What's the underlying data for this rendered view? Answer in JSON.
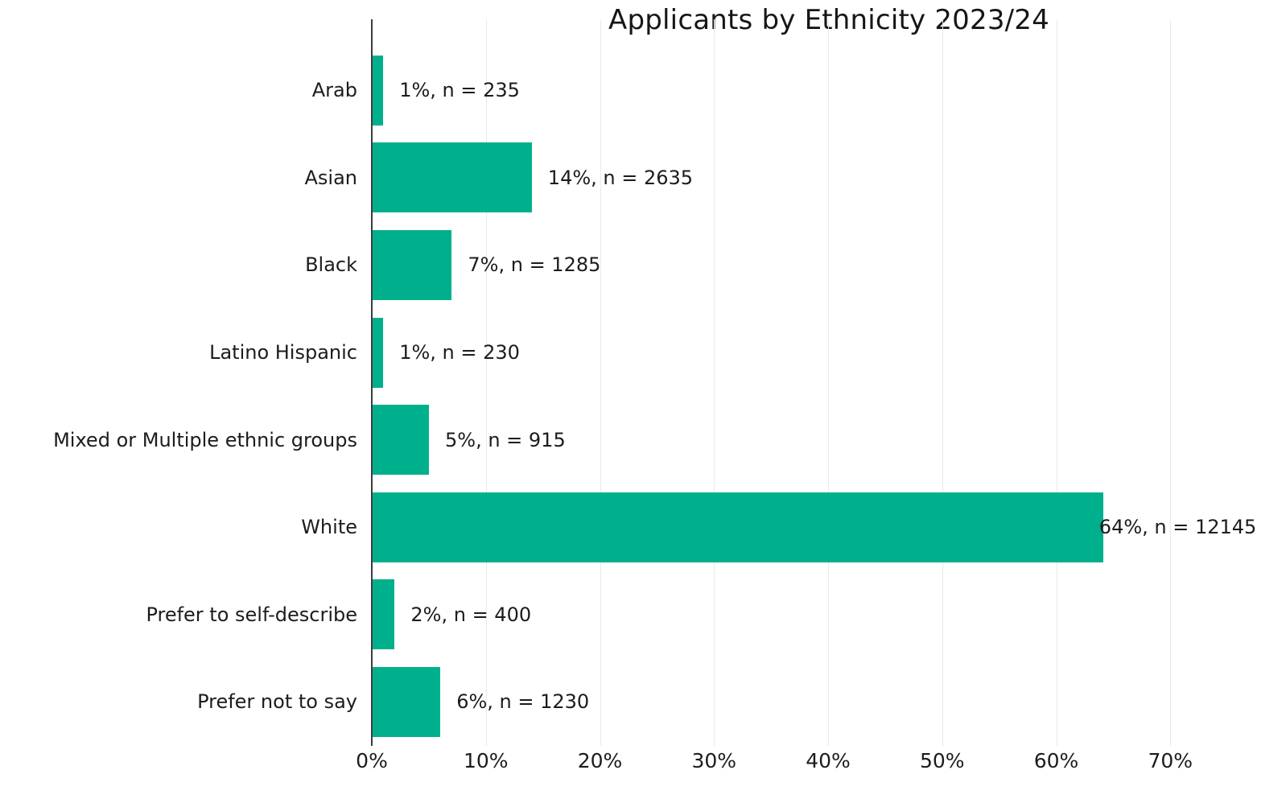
{
  "page": {
    "background": "#ffffff"
  },
  "chart_data": {
    "type": "bar",
    "orientation": "horizontal",
    "title": "Applicants by Ethnicity 2023/24",
    "categories": [
      "Arab",
      "Asian",
      "Black",
      "Latino Hispanic",
      "Mixed or Multiple ethnic groups",
      "White",
      "Prefer to self-describe",
      "Prefer not to say"
    ],
    "values": [
      1,
      14,
      7,
      1,
      5,
      64,
      2,
      6
    ],
    "counts": [
      235,
      2635,
      1285,
      230,
      915,
      12145,
      400,
      1230
    ],
    "bar_labels": [
      "1%, n = 235",
      "14%, n = 2635",
      "7%, n = 1285",
      "1%, n = 230",
      "5%, n = 915",
      "64%, n = 12145",
      "2%, n = 400",
      "6%, n = 1230"
    ],
    "x_tick_labels": [
      "0%",
      "10%",
      "20%",
      "30%",
      "40%",
      "50%",
      "60%",
      "70%"
    ],
    "x_tick_values": [
      0,
      10,
      20,
      30,
      40,
      50,
      60,
      70
    ],
    "xlim": [
      0,
      80
    ],
    "xlabel": "",
    "ylabel": "",
    "grid": true,
    "legend": false,
    "colors": {
      "bar": "#00B08C",
      "gridline": "#E9E9E9",
      "axis_line": "#3C3C3C",
      "text": "#1C1C1C"
    }
  }
}
